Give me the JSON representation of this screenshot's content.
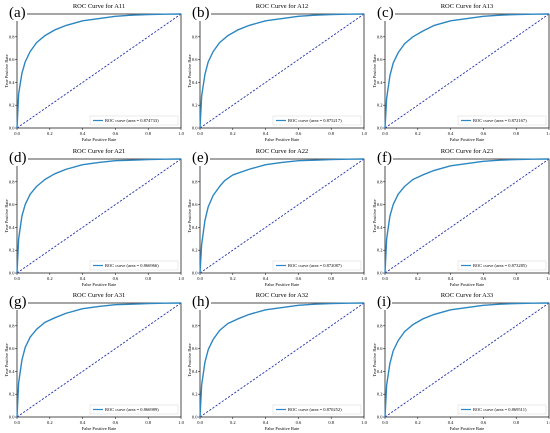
{
  "figure": {
    "style": {
      "curve_color": "#2c86c0",
      "diagonal_color": "#2233aa",
      "axis_color": "#000000"
    },
    "xlabel": "False Positive Rate",
    "ylabel": "True Positive Rate"
  },
  "chart_data": [
    {
      "label": "(a)",
      "type": "line",
      "title": "ROC Curve for A11",
      "xlabel": "False Positive Rate",
      "ylabel": "True Positive Rate",
      "xlim": [
        0,
        1
      ],
      "ylim": [
        0,
        1
      ],
      "xticks": [
        "0.0",
        "0.2",
        "0.4",
        "0.6",
        "0.8",
        "1.0"
      ],
      "yticks": [
        "0.0",
        "0.2",
        "0.4",
        "0.6",
        "0.8",
        "1.0"
      ],
      "legend_position": "lower-right",
      "grid": false,
      "series": [
        {
          "name": "ROC curve (area = 0.874733)",
          "x": [
            0,
            0.01,
            0.03,
            0.05,
            0.08,
            0.12,
            0.17,
            0.23,
            0.3,
            0.4,
            0.5,
            0.6,
            0.7,
            0.8,
            0.9,
            1.0
          ],
          "y": [
            0,
            0.3,
            0.48,
            0.58,
            0.67,
            0.75,
            0.81,
            0.86,
            0.9,
            0.94,
            0.96,
            0.98,
            0.99,
            0.995,
            0.998,
            1.0
          ]
        },
        {
          "x": [
            0,
            1
          ],
          "y": [
            0,
            1
          ]
        }
      ]
    },
    {
      "label": "(b)",
      "type": "line",
      "title": "ROC Curve for A12",
      "xlabel": "False Positive Rate",
      "ylabel": "True Positive Rate",
      "xlim": [
        0,
        1
      ],
      "ylim": [
        0,
        1
      ],
      "xticks": [
        "0.0",
        "0.2",
        "0.4",
        "0.6",
        "0.8",
        "1.0"
      ],
      "yticks": [
        "0.0",
        "0.2",
        "0.4",
        "0.6",
        "0.8",
        "1.0"
      ],
      "legend_position": "lower-right",
      "grid": false,
      "series": [
        {
          "name": "ROC curve (area = 0.875217)",
          "x": [
            0,
            0.01,
            0.03,
            0.05,
            0.08,
            0.12,
            0.17,
            0.23,
            0.3,
            0.4,
            0.5,
            0.6,
            0.7,
            0.8,
            0.9,
            1.0
          ],
          "y": [
            0,
            0.28,
            0.47,
            0.58,
            0.67,
            0.75,
            0.81,
            0.86,
            0.9,
            0.94,
            0.96,
            0.98,
            0.99,
            0.995,
            0.998,
            1.0
          ]
        },
        {
          "x": [
            0,
            1
          ],
          "y": [
            0,
            1
          ]
        }
      ]
    },
    {
      "label": "(c)",
      "type": "line",
      "title": "ROC Curve for A13",
      "xlabel": "False Positive Rate",
      "ylabel": "True Positive Rate",
      "xlim": [
        0,
        1
      ],
      "ylim": [
        0,
        1
      ],
      "xticks": [
        "0.0",
        "0.2",
        "0.4",
        "0.6",
        "0.8",
        "1.0"
      ],
      "yticks": [
        "0.0",
        "0.2",
        "0.4",
        "0.6",
        "0.8",
        "1.0"
      ],
      "legend_position": "lower-right",
      "grid": false,
      "series": [
        {
          "name": "ROC curve (area = 0.872167)",
          "x": [
            0,
            0.01,
            0.03,
            0.05,
            0.08,
            0.12,
            0.17,
            0.23,
            0.3,
            0.4,
            0.5,
            0.6,
            0.7,
            0.8,
            0.9,
            1.0
          ],
          "y": [
            0,
            0.26,
            0.46,
            0.57,
            0.66,
            0.74,
            0.8,
            0.85,
            0.9,
            0.94,
            0.96,
            0.98,
            0.99,
            0.995,
            0.998,
            1.0
          ]
        },
        {
          "x": [
            0,
            1
          ],
          "y": [
            0,
            1
          ]
        }
      ]
    },
    {
      "label": "(d)",
      "type": "line",
      "title": "ROC Curve for A21",
      "xlabel": "False Positive Rate",
      "ylabel": "True Positive Rate",
      "xlim": [
        0,
        1
      ],
      "ylim": [
        0,
        1
      ],
      "xticks": [
        "0.0",
        "0.2",
        "0.4",
        "0.6",
        "0.8",
        "1.0"
      ],
      "yticks": [
        "0.0",
        "0.2",
        "0.4",
        "0.6",
        "0.8",
        "1.0"
      ],
      "legend_position": "lower-right",
      "grid": false,
      "series": [
        {
          "name": "ROC curve (area = 0.866966)",
          "x": [
            0,
            0.01,
            0.03,
            0.05,
            0.08,
            0.12,
            0.17,
            0.23,
            0.3,
            0.4,
            0.5,
            0.6,
            0.7,
            0.8,
            0.9,
            1.0
          ],
          "y": [
            0,
            0.3,
            0.5,
            0.6,
            0.69,
            0.76,
            0.82,
            0.87,
            0.91,
            0.95,
            0.97,
            0.985,
            0.99,
            0.995,
            0.998,
            1.0
          ]
        },
        {
          "x": [
            0,
            1
          ],
          "y": [
            0,
            1
          ]
        }
      ]
    },
    {
      "label": "(e)",
      "type": "line",
      "title": "ROC Curve for A22",
      "xlabel": "False Positive Rate",
      "ylabel": "True Positive Rate",
      "xlim": [
        0,
        1
      ],
      "ylim": [
        0,
        1
      ],
      "xticks": [
        "0.0",
        "0.2",
        "0.4",
        "0.6",
        "0.8",
        "1.0"
      ],
      "yticks": [
        "0.0",
        "0.2",
        "0.4",
        "0.6",
        "0.8",
        "1.0"
      ],
      "legend_position": "lower-right",
      "grid": false,
      "series": [
        {
          "name": "ROC curve (area = 0.872087)",
          "x": [
            0,
            0.01,
            0.03,
            0.05,
            0.08,
            0.12,
            0.15,
            0.2,
            0.3,
            0.4,
            0.5,
            0.6,
            0.7,
            0.8,
            0.9,
            1.0
          ],
          "y": [
            0,
            0.25,
            0.46,
            0.58,
            0.68,
            0.76,
            0.81,
            0.86,
            0.91,
            0.95,
            0.97,
            0.985,
            0.99,
            0.995,
            0.998,
            1.0
          ]
        },
        {
          "x": [
            0,
            1
          ],
          "y": [
            0,
            1
          ]
        }
      ]
    },
    {
      "label": "(f)",
      "type": "line",
      "title": "ROC Curve for A23",
      "xlabel": "False Positive Rate",
      "ylabel": "True Positive Rate",
      "xlim": [
        0,
        1
      ],
      "ylim": [
        0,
        1
      ],
      "xticks": [
        "0.0",
        "0.2",
        "0.4",
        "0.6",
        "0.8",
        "1.0"
      ],
      "yticks": [
        "0.0",
        "0.2",
        "0.4",
        "0.6",
        "0.8",
        "1.0"
      ],
      "legend_position": "lower-right",
      "grid": false,
      "series": [
        {
          "name": "ROC curve (area = 0.873285)",
          "x": [
            0,
            0.01,
            0.03,
            0.05,
            0.08,
            0.12,
            0.17,
            0.23,
            0.3,
            0.4,
            0.5,
            0.6,
            0.7,
            0.8,
            0.9,
            1.0
          ],
          "y": [
            0,
            0.3,
            0.5,
            0.6,
            0.69,
            0.76,
            0.82,
            0.86,
            0.9,
            0.94,
            0.96,
            0.98,
            0.99,
            0.995,
            0.998,
            1.0
          ]
        },
        {
          "x": [
            0,
            1
          ],
          "y": [
            0,
            1
          ]
        }
      ]
    },
    {
      "label": "(g)",
      "type": "line",
      "title": "ROC Curve for A31",
      "xlabel": "False Positive Rate",
      "ylabel": "True Positive Rate",
      "xlim": [
        0,
        1
      ],
      "ylim": [
        0,
        1
      ],
      "xticks": [
        "0.0",
        "0.2",
        "0.4",
        "0.6",
        "0.8",
        "1.0"
      ],
      "yticks": [
        "0.0",
        "0.2",
        "0.4",
        "0.6",
        "0.8",
        "1.0"
      ],
      "legend_position": "lower-right",
      "grid": false,
      "series": [
        {
          "name": "ROC curve (area = 0.866989)",
          "x": [
            0,
            0.01,
            0.03,
            0.05,
            0.08,
            0.12,
            0.17,
            0.23,
            0.3,
            0.4,
            0.5,
            0.6,
            0.7,
            0.8,
            0.9,
            1.0
          ],
          "y": [
            0,
            0.3,
            0.5,
            0.61,
            0.7,
            0.77,
            0.83,
            0.87,
            0.91,
            0.95,
            0.97,
            0.985,
            0.99,
            0.995,
            0.998,
            1.0
          ]
        },
        {
          "x": [
            0,
            1
          ],
          "y": [
            0,
            1
          ]
        }
      ]
    },
    {
      "label": "(h)",
      "type": "line",
      "title": "ROC Curve for A32",
      "xlabel": "False Positive Rate",
      "ylabel": "True Positive Rate",
      "xlim": [
        0,
        1
      ],
      "ylim": [
        0,
        1
      ],
      "xticks": [
        "0.0",
        "0.2",
        "0.4",
        "0.6",
        "0.8",
        "1.0"
      ],
      "yticks": [
        "0.0",
        "0.2",
        "0.4",
        "0.6",
        "0.8",
        "1.0"
      ],
      "legend_position": "lower-right",
      "grid": false,
      "series": [
        {
          "name": "ROC curve (area = 0.870252)",
          "x": [
            0,
            0.01,
            0.03,
            0.05,
            0.08,
            0.12,
            0.17,
            0.23,
            0.3,
            0.4,
            0.5,
            0.6,
            0.7,
            0.8,
            0.9,
            1.0
          ],
          "y": [
            0,
            0.28,
            0.48,
            0.59,
            0.68,
            0.76,
            0.82,
            0.86,
            0.9,
            0.94,
            0.96,
            0.98,
            0.99,
            0.995,
            0.998,
            1.0
          ]
        },
        {
          "x": [
            0,
            1
          ],
          "y": [
            0,
            1
          ]
        }
      ]
    },
    {
      "label": "(i)",
      "type": "line",
      "title": "ROC Curve for A33",
      "xlabel": "False Positive Rate",
      "ylabel": "True Positive Rate",
      "xlim": [
        0,
        1
      ],
      "ylim": [
        0,
        1
      ],
      "xticks": [
        "0.0",
        "0.2",
        "0.4",
        "0.6",
        "0.8",
        "1.0"
      ],
      "yticks": [
        "0.0",
        "0.2",
        "0.4",
        "0.6",
        "0.8",
        "1.0"
      ],
      "legend_position": "lower-right",
      "grid": false,
      "series": [
        {
          "name": "ROC curve (area = 0.869511)",
          "x": [
            0,
            0.01,
            0.03,
            0.05,
            0.08,
            0.12,
            0.17,
            0.23,
            0.3,
            0.4,
            0.5,
            0.6,
            0.7,
            0.8,
            0.9,
            1.0
          ],
          "y": [
            0,
            0.28,
            0.47,
            0.58,
            0.67,
            0.75,
            0.81,
            0.86,
            0.9,
            0.94,
            0.96,
            0.98,
            0.99,
            0.995,
            0.998,
            1.0
          ]
        },
        {
          "x": [
            0,
            1
          ],
          "y": [
            0,
            1
          ]
        }
      ]
    }
  ]
}
